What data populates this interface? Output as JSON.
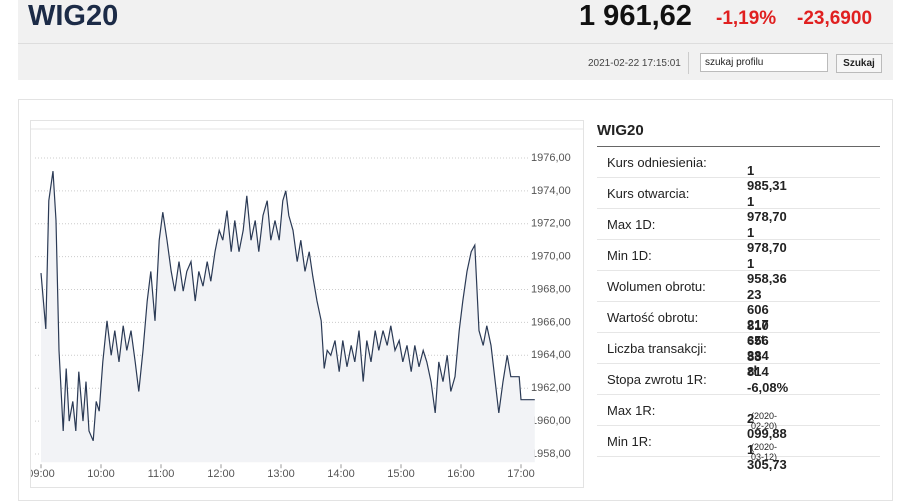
{
  "header": {
    "title": "WIG20",
    "price": "1 961,62",
    "change_pct": "-1,19%",
    "change_abs": "-23,6900",
    "timestamp": "2021-02-22 17:15:01",
    "search_value": "szukaj profilu",
    "search_button": "Szukaj"
  },
  "chart_data": {
    "type": "line",
    "x": [
      9.0,
      9.08,
      9.13,
      9.2,
      9.25,
      9.3,
      9.37,
      9.42,
      9.47,
      9.53,
      9.58,
      9.63,
      9.7,
      9.75,
      9.8,
      9.87,
      9.92,
      9.97,
      10.03,
      10.1,
      10.17,
      10.23,
      10.3,
      10.37,
      10.43,
      10.5,
      10.57,
      10.63,
      10.7,
      10.77,
      10.83,
      10.9,
      10.97,
      11.03,
      11.1,
      11.17,
      11.23,
      11.3,
      11.37,
      11.43,
      11.5,
      11.57,
      11.63,
      11.7,
      11.77,
      11.83,
      11.9,
      11.97,
      12.03,
      12.1,
      12.17,
      12.23,
      12.3,
      12.37,
      12.43,
      12.5,
      12.57,
      12.63,
      12.7,
      12.77,
      12.83,
      12.9,
      12.97,
      13.03,
      13.08,
      13.13,
      13.2,
      13.27,
      13.33,
      13.4,
      13.47,
      13.53,
      13.6,
      13.67,
      13.72,
      13.77,
      13.83,
      13.9,
      13.97,
      14.03,
      14.1,
      14.17,
      14.23,
      14.3,
      14.37,
      14.43,
      14.5,
      14.57,
      14.63,
      14.7,
      14.77,
      14.83,
      14.9,
      14.97,
      15.03,
      15.1,
      15.17,
      15.23,
      15.3,
      15.37,
      15.43,
      15.5,
      15.57,
      15.63,
      15.7,
      15.77,
      15.83,
      15.9,
      15.97,
      16.03,
      16.1,
      16.17,
      16.23,
      16.3,
      16.37,
      16.43,
      16.5,
      16.57,
      16.63,
      16.7,
      16.77,
      16.83,
      16.9,
      16.97,
      17.0,
      17.23
    ],
    "series": [
      {
        "color": "#2b3a55",
        "values": [
          1969.0,
          1965.6,
          1973.4,
          1975.2,
          1972.2,
          1964.3,
          1959.4,
          1963.2,
          1960.0,
          1961.2,
          1959.4,
          1963.0,
          1960.0,
          1962.4,
          1959.4,
          1958.8,
          1961.2,
          1960.6,
          1963.6,
          1966.1,
          1964.0,
          1965.5,
          1963.6,
          1965.8,
          1964.3,
          1965.5,
          1963.6,
          1961.8,
          1964.3,
          1967.3,
          1969.1,
          1966.1,
          1971.0,
          1972.7,
          1971.0,
          1969.1,
          1967.9,
          1969.7,
          1967.9,
          1969.1,
          1969.7,
          1967.3,
          1969.1,
          1968.2,
          1969.7,
          1968.5,
          1970.3,
          1971.6,
          1971.0,
          1972.8,
          1970.3,
          1972.2,
          1970.3,
          1971.6,
          1973.7,
          1971.0,
          1972.2,
          1970.3,
          1972.5,
          1973.4,
          1971.0,
          1972.2,
          1971.0,
          1973.4,
          1974.0,
          1972.5,
          1971.6,
          1969.7,
          1971.0,
          1969.1,
          1970.3,
          1968.8,
          1967.3,
          1966.1,
          1963.2,
          1964.3,
          1964.0,
          1964.9,
          1963.0,
          1964.9,
          1963.3,
          1964.6,
          1963.6,
          1965.5,
          1962.4,
          1964.9,
          1963.6,
          1965.5,
          1964.3,
          1965.5,
          1964.6,
          1965.8,
          1964.3,
          1964.9,
          1963.6,
          1964.6,
          1963.0,
          1964.6,
          1963.3,
          1964.3,
          1963.6,
          1962.4,
          1960.5,
          1963.6,
          1962.4,
          1964.0,
          1961.8,
          1962.7,
          1965.5,
          1967.3,
          1969.1,
          1970.3,
          1970.7,
          1965.5,
          1964.6,
          1965.8,
          1964.6,
          1962.4,
          1960.5,
          1962.4,
          1964.0,
          1962.7,
          1962.7,
          1962.7,
          1961.3,
          1961.3
        ]
      }
    ],
    "xlim": [
      8.9,
      17.25
    ],
    "xticks": [
      {
        "value": 9,
        "label": "09:00"
      },
      {
        "value": 10,
        "label": "10:00"
      },
      {
        "value": 11,
        "label": "11:00"
      },
      {
        "value": 12,
        "label": "12:00"
      },
      {
        "value": 13,
        "label": "13:00"
      },
      {
        "value": 14,
        "label": "14:00"
      },
      {
        "value": 15,
        "label": "15:00"
      },
      {
        "value": 16,
        "label": "16:00"
      },
      {
        "value": 17,
        "label": "17:00"
      }
    ],
    "ylim": [
      1957.5,
      1977.7
    ],
    "yticks": [
      {
        "value": 1958,
        "label": "1958,00"
      },
      {
        "value": 1960,
        "label": "1960,00"
      },
      {
        "value": 1962,
        "label": "1962,00"
      },
      {
        "value": 1964,
        "label": "1964,00"
      },
      {
        "value": 1966,
        "label": "1966,00"
      },
      {
        "value": 1968,
        "label": "1968,00"
      },
      {
        "value": 1970,
        "label": "1970,00"
      },
      {
        "value": 1972,
        "label": "1972,00"
      },
      {
        "value": 1974,
        "label": "1974,00"
      },
      {
        "value": 1976,
        "label": "1976,00"
      }
    ],
    "grid": true,
    "area_color": "#f2f3f6"
  },
  "stats": {
    "title": "WIG20",
    "rows": [
      {
        "label": "Kurs odniesienia:",
        "value": "1 985,31"
      },
      {
        "label": "Kurs otwarcia:",
        "value": "1 978,70"
      },
      {
        "label": "Max 1D:",
        "value": "1 978,70"
      },
      {
        "label": "Min 1D:",
        "value": "1 958,36"
      },
      {
        "label": "Wolumen obrotu:",
        "value": "23 606 217 szt."
      },
      {
        "label": "Wartość obrotu:",
        "value": "810 656 384 zł"
      },
      {
        "label": "Liczba transakcji:",
        "value": "83 814"
      },
      {
        "label": "Stopa zwrotu 1R:",
        "value": "-6,08%"
      },
      {
        "label": "Max 1R:",
        "value": "2 099,88",
        "note": "(2020-02-20)"
      },
      {
        "label": "Min 1R:",
        "value": "1 305,73",
        "note": "(2020-03-12)"
      }
    ]
  }
}
